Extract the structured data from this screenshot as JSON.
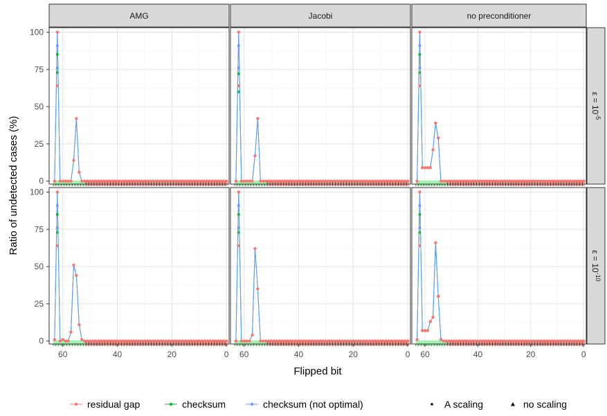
{
  "chart_data": {
    "type": "line",
    "xlabel": "Flipped bit",
    "ylabel": "Ratio of undetected cases (%)",
    "xlim": [
      65,
      -1
    ],
    "ylim": [
      -2,
      103
    ],
    "x_ticks": [
      60,
      40,
      20,
      0
    ],
    "y_ticks": [
      0,
      25,
      50,
      75,
      100
    ],
    "grid": true,
    "legend_position": "bottom",
    "columns": [
      "AMG",
      "Jacobi",
      "no preconditioner"
    ],
    "rows": [
      "ε = 10⁻⁵",
      "ε = 10⁻¹⁰"
    ],
    "series_styles": [
      {
        "name": "residual gap",
        "color": "#F8766D"
      },
      {
        "name": "checksum",
        "color": "#00BA38"
      },
      {
        "name": "checksum (not optimal)",
        "color": "#619CFF"
      }
    ],
    "shape_legend": [
      {
        "name": "A scaling",
        "shape": "circle"
      },
      {
        "name": "no scaling",
        "shape": "triangle"
      }
    ],
    "panels": [
      {
        "col": "AMG",
        "row": "ε = 10⁻⁵",
        "points": [
          [
            63,
            0
          ],
          [
            62,
            100
          ],
          [
            61,
            0
          ],
          [
            60,
            0
          ],
          [
            59,
            0
          ],
          [
            58,
            0
          ],
          [
            57,
            0
          ],
          [
            56,
            14
          ],
          [
            55,
            42
          ],
          [
            54,
            6
          ],
          [
            53,
            0
          ],
          [
            52,
            0
          ]
        ],
        "checksum_peak": 85,
        "blue_peak": 91
      },
      {
        "col": "Jacobi",
        "row": "ε = 10⁻⁵",
        "points": [
          [
            63,
            0
          ],
          [
            62,
            100
          ],
          [
            61,
            0
          ],
          [
            60,
            0
          ],
          [
            59,
            0
          ],
          [
            58,
            0
          ],
          [
            57,
            0
          ],
          [
            56,
            17
          ],
          [
            55,
            42
          ],
          [
            54,
            0
          ],
          [
            53,
            0
          ],
          [
            52,
            0
          ]
        ],
        "checksum_peak": 72,
        "blue_peak": 91
      },
      {
        "col": "no preconditioner",
        "row": "ε = 10⁻⁵",
        "points": [
          [
            63,
            0
          ],
          [
            62,
            100
          ],
          [
            61,
            9
          ],
          [
            60,
            9
          ],
          [
            59,
            9
          ],
          [
            58,
            9
          ],
          [
            57,
            21
          ],
          [
            56,
            39
          ],
          [
            55,
            29
          ],
          [
            54,
            0
          ],
          [
            53,
            0
          ],
          [
            52,
            0
          ]
        ],
        "checksum_peak": 85,
        "blue_peak": 91
      },
      {
        "col": "AMG",
        "row": "ε = 10⁻¹⁰",
        "points": [
          [
            63,
            1
          ],
          [
            62,
            100
          ],
          [
            61,
            0
          ],
          [
            60,
            1
          ],
          [
            59,
            0
          ],
          [
            58,
            0
          ],
          [
            57,
            6
          ],
          [
            56,
            51
          ],
          [
            55,
            44
          ],
          [
            54,
            11
          ],
          [
            53,
            1
          ],
          [
            52,
            0
          ]
        ],
        "checksum_peak": 85,
        "blue_peak": 91
      },
      {
        "col": "Jacobi",
        "row": "ε = 10⁻¹⁰",
        "points": [
          [
            63,
            0
          ],
          [
            62,
            100
          ],
          [
            61,
            0
          ],
          [
            60,
            0
          ],
          [
            59,
            0
          ],
          [
            58,
            0
          ],
          [
            57,
            4
          ],
          [
            56,
            62
          ],
          [
            55,
            35
          ],
          [
            54,
            0
          ],
          [
            53,
            0
          ],
          [
            52,
            0
          ]
        ],
        "checksum_peak": 85,
        "blue_peak": 91
      },
      {
        "col": "no preconditioner",
        "row": "ε = 10⁻¹⁰",
        "points": [
          [
            63,
            1
          ],
          [
            62,
            100
          ],
          [
            61,
            7
          ],
          [
            60,
            7
          ],
          [
            59,
            7
          ],
          [
            58,
            13
          ],
          [
            57,
            16
          ],
          [
            56,
            66
          ],
          [
            55,
            30
          ],
          [
            54,
            1
          ],
          [
            53,
            0
          ],
          [
            52,
            0
          ]
        ],
        "checksum_peak": 85,
        "blue_peak": 91
      }
    ],
    "bars": {
      "green_range": [
        63,
        52
      ],
      "red_range": [
        51,
        0
      ],
      "green_color": "#00BA38",
      "red_color": "#F8766D"
    }
  },
  "legend": {
    "residual_gap": "residual gap",
    "checksum": "checksum",
    "checksum_not_optimal": "checksum (not optimal)",
    "a_scaling": "A scaling",
    "no_scaling": "no scaling"
  },
  "axis": {
    "xlabel": "Flipped bit",
    "ylabel": "Ratio of undetected cases (%)"
  },
  "strips": {
    "col1": "AMG",
    "col2": "Jacobi",
    "col3": "no preconditioner",
    "row1_base": "ε = 10",
    "row1_exp": "-5",
    "row2_base": "ε = 10",
    "row2_exp": "-10"
  }
}
